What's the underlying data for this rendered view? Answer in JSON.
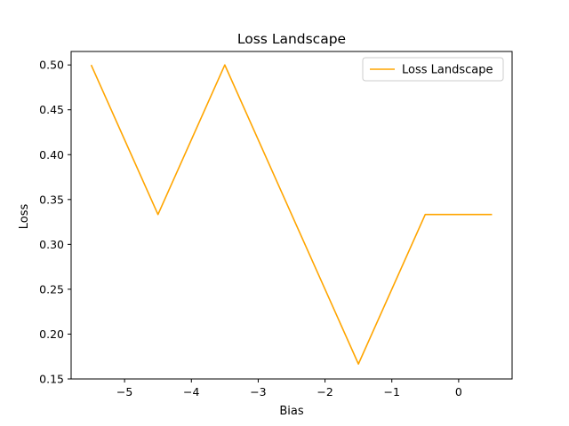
{
  "chart_data": {
    "type": "line",
    "title": "Loss Landscape",
    "xlabel": "Bias",
    "ylabel": "Loss",
    "xlim": [
      -5.8,
      0.8
    ],
    "ylim": [
      0.15,
      0.515
    ],
    "x_ticks": [
      -5,
      -4,
      -3,
      -2,
      -1,
      0
    ],
    "x_tick_labels": [
      "−5",
      "−4",
      "−3",
      "−2",
      "−1",
      "0"
    ],
    "y_ticks": [
      0.15,
      0.2,
      0.25,
      0.3,
      0.35,
      0.4,
      0.45,
      0.5
    ],
    "y_tick_labels": [
      "0.15",
      "0.20",
      "0.25",
      "0.30",
      "0.35",
      "0.40",
      "0.45",
      "0.50"
    ],
    "grid": false,
    "legend_position": "top-right",
    "series": [
      {
        "name": "Loss Landscape",
        "color": "#ffa500",
        "x": [
          -5.5,
          -4.5,
          -3.5,
          -2.5,
          -1.5,
          -0.5,
          0.5
        ],
        "y": [
          0.5,
          0.3333,
          0.5,
          0.3333,
          0.1667,
          0.3333,
          0.3333
        ]
      }
    ]
  }
}
